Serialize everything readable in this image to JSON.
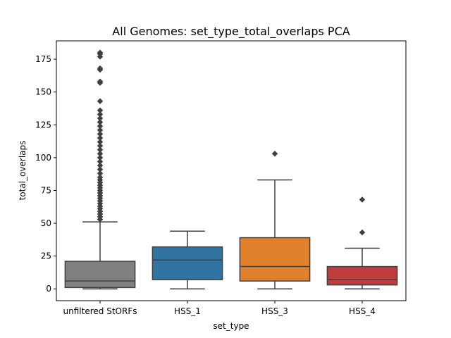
{
  "chart_data": {
    "type": "box",
    "title": "All Genomes: set_type_total_overlaps PCA",
    "xlabel": "set_type",
    "ylabel": "total_overlaps",
    "ylim": [
      -9,
      189
    ],
    "yticks": [
      0,
      25,
      50,
      75,
      100,
      125,
      150,
      175
    ],
    "grid": false,
    "legend": "none",
    "categories": [
      "unfiltered StORFs",
      "HSS_1",
      "HSS_3",
      "HSS_4"
    ],
    "boxes": [
      {
        "category": "unfiltered StORFs",
        "color": "#808080",
        "whisker_low": 0,
        "q1": 1,
        "median": 6,
        "q3": 21,
        "whisker_high": 51,
        "outliers": [
          53,
          55,
          57,
          59,
          61,
          63,
          65,
          67,
          69,
          71,
          73,
          75,
          77,
          79,
          81,
          83,
          85,
          88,
          91,
          94,
          97,
          100,
          103,
          106,
          109,
          112,
          115,
          118,
          121,
          124,
          127,
          130,
          133,
          136,
          143,
          157,
          158,
          167,
          168,
          177,
          179,
          180
        ]
      },
      {
        "category": "HSS_1",
        "color": "#3274a1",
        "whisker_low": 0,
        "q1": 7,
        "median": 22,
        "q3": 32,
        "whisker_high": 44,
        "outliers": []
      },
      {
        "category": "HSS_3",
        "color": "#e1812c",
        "whisker_low": 0,
        "q1": 6,
        "median": 17,
        "q3": 39,
        "whisker_high": 83,
        "outliers": [
          103
        ]
      },
      {
        "category": "HSS_4",
        "color": "#c03d3e",
        "whisker_low": 0,
        "q1": 3,
        "median": 7,
        "q3": 17,
        "whisker_high": 31,
        "outliers": [
          43,
          68
        ]
      }
    ]
  }
}
